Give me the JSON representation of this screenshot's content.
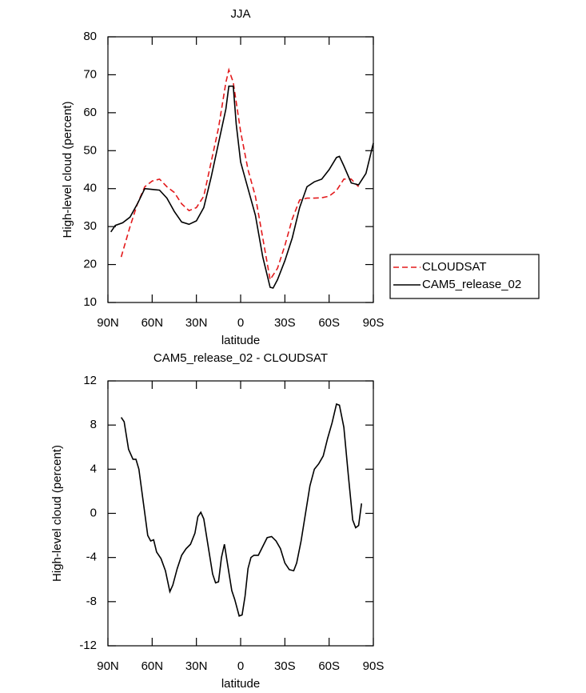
{
  "chart_data": [
    {
      "type": "line",
      "title": "JJA",
      "xlabel": "latitude",
      "ylabel": "High-level cloud (percent)",
      "xlim": [
        90,
        -90
      ],
      "xticks": [
        {
          "value": 90,
          "label": "90N"
        },
        {
          "value": 60,
          "label": "60N"
        },
        {
          "value": 30,
          "label": "30N"
        },
        0,
        {
          "value": -30,
          "label": "30S"
        },
        {
          "value": -60,
          "label": "60S"
        },
        {
          "value": -90,
          "label": "90S"
        }
      ],
      "ylim": [
        10,
        80
      ],
      "yticks": [
        10,
        20,
        30,
        40,
        50,
        60,
        70,
        80
      ],
      "legend": "right",
      "series": [
        {
          "name": "CLOUDSAT",
          "color": "#e31a1c",
          "linestyle": "dashed",
          "x": [
            81,
            75,
            70,
            65,
            60,
            55,
            50,
            45,
            40,
            35,
            30,
            25,
            20,
            15,
            10,
            8,
            5,
            0,
            -5,
            -10,
            -15,
            -20,
            -25,
            -30,
            -35,
            -40,
            -45,
            -50,
            -55,
            -60,
            -65,
            -70,
            -75,
            -80
          ],
          "values": [
            22,
            30,
            36,
            40.5,
            42,
            42.5,
            40.5,
            39,
            36,
            34.2,
            35,
            38,
            47,
            56,
            68,
            71.3,
            68,
            55,
            45,
            38,
            27,
            16,
            19,
            25,
            32,
            37,
            37.5,
            37.5,
            37.6,
            38,
            39.5,
            42.5,
            42.5,
            40.5
          ]
        },
        {
          "name": "CAM5_release_02",
          "color": "#000000",
          "linestyle": "solid",
          "x": [
            88,
            85,
            80,
            75,
            70,
            65,
            60,
            55,
            50,
            45,
            40,
            35,
            30,
            25,
            20,
            15,
            10,
            8,
            5,
            3,
            0,
            -5,
            -10,
            -15,
            -20,
            -22,
            -25,
            -30,
            -35,
            -40,
            -45,
            -50,
            -55,
            -60,
            -65,
            -67,
            -70,
            -75,
            -80,
            -85,
            -90
          ],
          "values": [
            28.6,
            30.3,
            31,
            32.5,
            36,
            40,
            39.8,
            39.6,
            37.5,
            34,
            31.2,
            30.6,
            31.5,
            35,
            43,
            52,
            61,
            67,
            67,
            57,
            47,
            40,
            33,
            22,
            14,
            13.8,
            16,
            21,
            27,
            35,
            40.5,
            41.8,
            42.5,
            45,
            48.2,
            48.5,
            46,
            41.5,
            41,
            44,
            52
          ]
        }
      ]
    },
    {
      "type": "line",
      "title": "CAM5_release_02 - CLOUDSAT",
      "xlabel": "latitude",
      "ylabel": "High-level cloud (percent)",
      "xlim": [
        90,
        -90
      ],
      "xticks": [
        {
          "value": 90,
          "label": "90N"
        },
        {
          "value": 60,
          "label": "60N"
        },
        {
          "value": 30,
          "label": "30N"
        },
        0,
        {
          "value": -30,
          "label": "30S"
        },
        {
          "value": -60,
          "label": "60S"
        },
        {
          "value": -90,
          "label": "90S"
        }
      ],
      "ylim": [
        -12,
        12
      ],
      "yticks": [
        -12,
        -8,
        -4,
        0,
        4,
        8,
        12
      ],
      "series": [
        {
          "color": "#000000",
          "linestyle": "solid",
          "x": [
            81,
            79,
            76,
            73,
            71,
            69,
            66,
            63,
            61,
            59,
            57,
            54,
            51,
            48,
            46,
            43,
            40,
            37,
            34,
            31,
            29,
            27,
            25,
            22,
            19,
            17,
            15,
            13,
            11,
            9,
            6,
            4,
            1,
            -1,
            -3,
            -5,
            -7,
            -9,
            -12,
            -15,
            -18,
            -21,
            -24,
            -27,
            -30,
            -33,
            -36,
            -38,
            -41,
            -44,
            -47,
            -50,
            -53,
            -56,
            -59,
            -62,
            -65,
            -67,
            -70,
            -73,
            -76,
            -78,
            -80,
            -82
          ],
          "values": [
            8.7,
            8.3,
            5.8,
            4.9,
            4.9,
            4,
            1,
            -2,
            -2.5,
            -2.4,
            -3.5,
            -4.1,
            -5.2,
            -7.1,
            -6.5,
            -5,
            -3.8,
            -3.2,
            -2.8,
            -1.8,
            -0.3,
            0.1,
            -0.5,
            -3,
            -5.5,
            -6.3,
            -6.2,
            -4,
            -2.8,
            -4.5,
            -7,
            -7.8,
            -9.3,
            -9.2,
            -7.5,
            -5,
            -4,
            -3.8,
            -3.8,
            -3,
            -2.2,
            -2.1,
            -2.5,
            -3.2,
            -4.5,
            -5.1,
            -5.2,
            -4.5,
            -2.5,
            0,
            2.5,
            4,
            4.5,
            5.2,
            6.8,
            8.2,
            9.9,
            9.8,
            7.8,
            3.5,
            -0.6,
            -1.3,
            -1.1,
            0.9
          ]
        }
      ]
    }
  ]
}
